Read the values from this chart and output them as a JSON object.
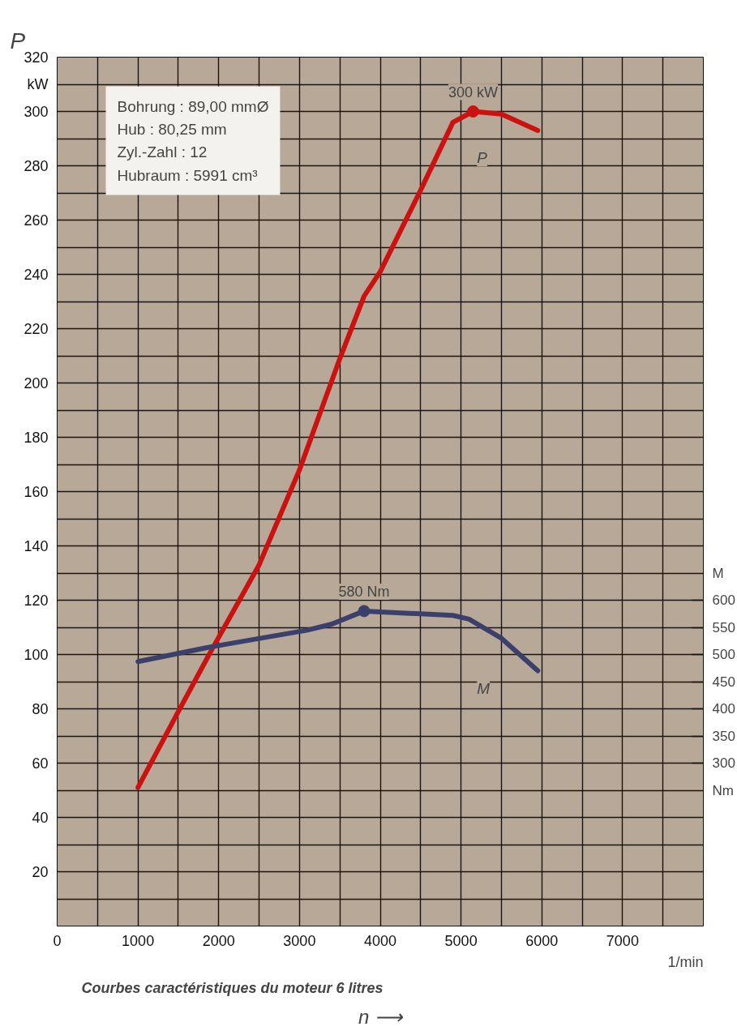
{
  "chart_data": {
    "type": "line",
    "title": "Courbes caractéristiques du moteur 6 litres",
    "xlabel": "n ⟶",
    "ylabel": "P",
    "y2label": "M",
    "annotations": [
      "Bohrung : 89,00 mmØ",
      "Hub : 80,25 mm",
      "Zyl.-Zahl : 12",
      "Hubraum : 5991 cm³",
      "1/min"
    ],
    "series": [
      {
        "name": "P",
        "color": "#cc1111",
        "x": [
          1000,
          1500,
          1900,
          2500,
          3000,
          3500,
          3800,
          4000,
          4500,
          4900,
          5150,
          5500,
          5950
        ],
        "values": [
          51,
          79,
          101,
          133,
          168,
          209,
          232,
          241,
          271,
          296,
          300,
          299,
          293
        ],
        "value_labels": [
          null,
          null,
          null,
          null,
          null,
          null,
          null,
          null,
          null,
          null,
          "300 kW",
          null,
          null
        ]
      },
      {
        "name": "M",
        "color": "#3a3f6b",
        "axis": "y2",
        "x": [
          1000,
          1900,
          3100,
          3400,
          3800,
          4900,
          5100,
          5500,
          5950
        ],
        "values": [
          487,
          514,
          545,
          556,
          580,
          572,
          565,
          530,
          470
        ],
        "value_labels": [
          null,
          null,
          null,
          null,
          "580 Nm",
          null,
          null,
          null,
          null
        ]
      }
    ],
    "xlim": [
      0,
      8000
    ],
    "xticks": [
      0,
      {
        "value": 500,
        "label": null
      },
      1000,
      {
        "value": 1500,
        "label": null
      },
      2000,
      {
        "value": 2500,
        "label": null
      },
      3000,
      {
        "value": 3500,
        "label": null
      },
      4000,
      {
        "value": 4500,
        "label": null
      },
      5000,
      {
        "value": 5500,
        "label": null
      },
      6000,
      {
        "value": 6500,
        "label": null
      },
      7000,
      {
        "value": 7500,
        "label": null
      },
      {
        "value": 8000,
        "label": null
      }
    ],
    "ylim": [
      0,
      320
    ],
    "yticks": [
      {
        "value": 10,
        "label": null
      },
      20,
      {
        "value": 30,
        "label": null
      },
      40,
      {
        "value": 50,
        "label": null
      },
      60,
      {
        "value": 70,
        "label": null
      },
      80,
      {
        "value": 90,
        "label": null
      },
      100,
      {
        "value": 110,
        "label": null
      },
      120,
      {
        "value": 130,
        "label": null
      },
      140,
      {
        "value": 150,
        "label": null
      },
      160,
      {
        "value": 170,
        "label": null
      },
      180,
      {
        "value": 190,
        "label": null
      },
      200,
      {
        "value": 210,
        "label": null
      },
      220,
      {
        "value": 230,
        "label": null
      },
      240,
      {
        "value": 250,
        "label": null
      },
      260,
      {
        "value": 270,
        "label": null
      },
      280,
      {
        "value": 290,
        "label": null
      },
      300,
      {
        "value": 310,
        "label": "kW"
      },
      320
    ],
    "y2lim": [
      0,
      1600
    ],
    "y2ticks": [
      {
        "value": 250,
        "label": "Nm"
      },
      300,
      350,
      400,
      450,
      500,
      550,
      600
    ],
    "grid": true,
    "legend": false
  }
}
